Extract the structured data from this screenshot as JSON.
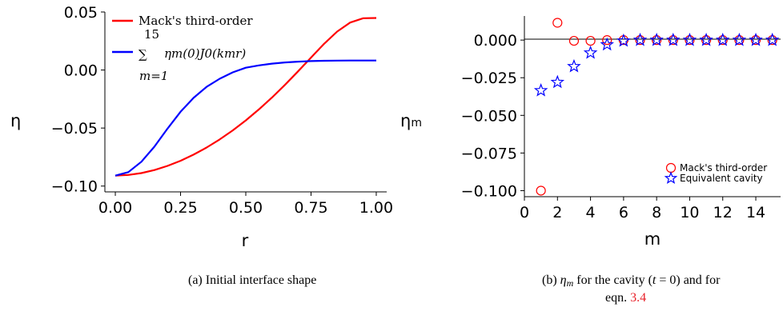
{
  "chart_data": [
    {
      "type": "line",
      "xlabel": "r",
      "ylabel": "η",
      "xlim": [
        -0.04,
        1.04
      ],
      "ylim": [
        -0.105,
        0.05
      ],
      "xticks": [
        0.0,
        0.25,
        0.5,
        0.75,
        1.0
      ],
      "xtick_labels": [
        "0.00",
        "0.25",
        "0.50",
        "0.75",
        "1.00"
      ],
      "yticks": [
        -0.1,
        -0.05,
        0.0,
        0.05
      ],
      "ytick_labels": [
        "−0.10",
        "−0.05",
        "0.00",
        "0.05"
      ],
      "legend_position": "top-left",
      "series": [
        {
          "name": "Mack's third-order",
          "color": "#ff0000",
          "x": [
            0.0,
            0.05,
            0.1,
            0.15,
            0.2,
            0.25,
            0.3,
            0.35,
            0.4,
            0.45,
            0.5,
            0.55,
            0.6,
            0.65,
            0.7,
            0.75,
            0.8,
            0.85,
            0.9,
            0.95,
            1.0
          ],
          "y": [
            -0.091,
            -0.0904,
            -0.0888,
            -0.0862,
            -0.0826,
            -0.0782,
            -0.0729,
            -0.0668,
            -0.0598,
            -0.052,
            -0.0434,
            -0.034,
            -0.0238,
            -0.0128,
            -0.0012,
            0.0107,
            0.0226,
            0.0331,
            0.0409,
            0.0446,
            0.0448
          ]
        },
        {
          "name": "Σ_{m=1}^{15} η_m(0) J_0(k_m r)",
          "label_parts": {
            "sum": "∑",
            "upper": "15",
            "lower": "m=1",
            "term": "ηm(0)J0(kmr)"
          },
          "color": "#0000ff",
          "x": [
            0.0,
            0.05,
            0.1,
            0.15,
            0.2,
            0.25,
            0.3,
            0.35,
            0.4,
            0.45,
            0.5,
            0.55,
            0.6,
            0.65,
            0.7,
            0.75,
            0.8,
            0.85,
            0.9,
            0.95,
            1.0
          ],
          "y": [
            -0.091,
            -0.088,
            -0.079,
            -0.066,
            -0.0505,
            -0.036,
            -0.024,
            -0.0145,
            -0.0075,
            -0.002,
            0.002,
            0.004,
            0.0055,
            0.0065,
            0.0072,
            0.0077,
            0.008,
            0.0081,
            0.0082,
            0.0082,
            0.0082
          ]
        }
      ]
    },
    {
      "type": "scatter",
      "xlabel": "m",
      "ylabel": "ηm",
      "xlim": [
        0,
        15.5
      ],
      "ylim": [
        -0.104,
        0.016
      ],
      "xticks": [
        0,
        2,
        4,
        6,
        8,
        10,
        12,
        14
      ],
      "yticks": [
        0.0,
        -0.025,
        -0.05,
        -0.075,
        -0.1
      ],
      "ytick_labels": [
        "0.000",
        "−0.025",
        "−0.050",
        "−0.075",
        "−0.100"
      ],
      "legend_position": "bottom-right",
      "zero_line": true,
      "series": [
        {
          "name": "Mack's third-order",
          "color": "#ff0000",
          "marker": "circle",
          "x": [
            1,
            2,
            3,
            4,
            5,
            6,
            7,
            8,
            9,
            10,
            11,
            12,
            13,
            14,
            15
          ],
          "y": [
            -0.1,
            0.0115,
            -0.0005,
            -0.0005,
            0.0,
            0.0,
            0.0,
            0.0,
            0.0,
            0.0,
            0.0,
            0.0,
            0.0,
            0.0,
            0.0
          ]
        },
        {
          "name": "Equivalent cavity",
          "color": "#0000ff",
          "marker": "star",
          "x": [
            1,
            2,
            3,
            4,
            5,
            6,
            7,
            8,
            9,
            10,
            11,
            12,
            13,
            14,
            15
          ],
          "y": [
            -0.0335,
            -0.028,
            -0.0175,
            -0.0085,
            -0.003,
            -0.0005,
            0.0,
            0.0,
            0.0,
            0.0,
            0.0,
            0.0,
            0.0,
            0.0,
            0.0
          ]
        }
      ]
    }
  ],
  "captions": {
    "a": "(a) Initial interface shape",
    "b_line1_prefix": "(b) ",
    "b_line1_eta": "η",
    "b_line1_m": "m",
    "b_line1_mid": " for the cavity (",
    "b_line1_t": "t",
    "b_line1_rest": " = 0) and for",
    "b_line2_prefix": "eqn. ",
    "b_line2_ref": "3.4"
  }
}
